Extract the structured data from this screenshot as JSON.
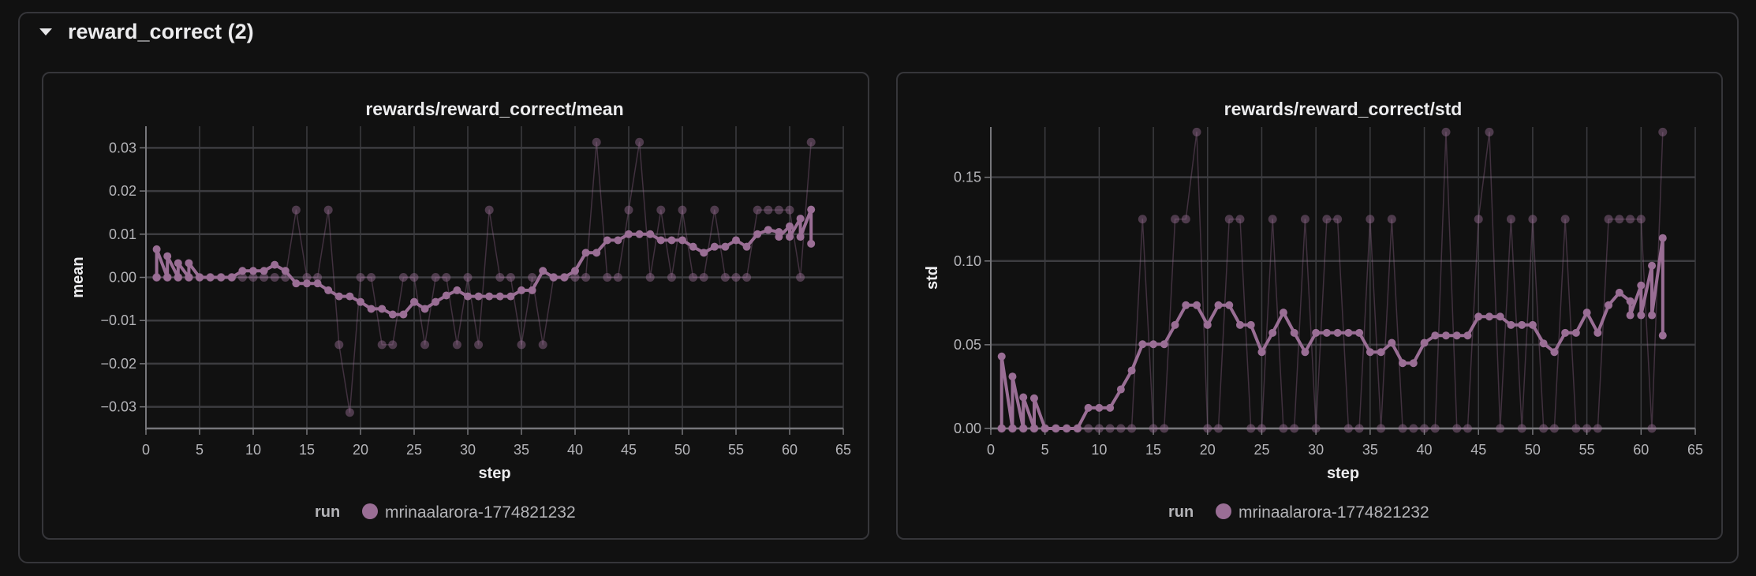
{
  "section": {
    "title": "reward_correct (2)",
    "caret_icon": "caret-down-icon"
  },
  "accent_color": "#9a6e95",
  "chart_data": [
    {
      "type": "line",
      "title": "rewards/reward_correct/mean",
      "xlabel": "step",
      "ylabel": "mean",
      "xlim": [
        0,
        65
      ],
      "ylim": [
        -0.035,
        0.035
      ],
      "xticks": [
        0,
        5,
        10,
        15,
        20,
        25,
        30,
        35,
        40,
        45,
        50,
        55,
        60,
        65
      ],
      "xtick_labels": [
        "0",
        "5",
        "10",
        "15",
        "20",
        "25",
        "30",
        "35",
        "40",
        "45",
        "50",
        "55",
        "60",
        "65"
      ],
      "yticks": [
        -0.03,
        -0.02,
        -0.01,
        0,
        0.01,
        0.02,
        0.03
      ],
      "ytick_labels": [
        "−0.03",
        "−0.02",
        "−0.01",
        "0.00",
        "0.01",
        "0.02",
        "0.03"
      ],
      "grid": true,
      "legend": {
        "title": "run",
        "placement": "bottom",
        "entries": [
          "mrinaalarora-1774821232"
        ]
      },
      "series": [
        {
          "name": "mrinaalarora-1774821232",
          "kind": "raw",
          "color": "#9a6e95",
          "x": [
            1,
            2,
            3,
            4,
            5,
            6,
            7,
            8,
            9,
            10,
            11,
            12,
            13,
            14,
            15,
            16,
            17,
            18,
            19,
            20,
            21,
            22,
            23,
            24,
            25,
            26,
            27,
            28,
            29,
            30,
            31,
            32,
            33,
            34,
            35,
            36,
            37,
            38,
            39,
            40,
            41,
            42,
            43,
            44,
            45,
            46,
            47,
            48,
            49,
            50,
            51,
            52,
            53,
            54,
            55,
            56,
            57,
            58,
            59,
            60,
            61,
            62
          ],
          "y": [
            0,
            0,
            0,
            0,
            0,
            0,
            0,
            0,
            0,
            0,
            0,
            0,
            0,
            0.0156,
            0,
            0,
            0.0156,
            -0.0156,
            -0.0313,
            0,
            0,
            -0.0156,
            -0.0156,
            0,
            0,
            -0.0156,
            0,
            0,
            -0.0156,
            0,
            -0.0156,
            0.0156,
            0,
            0,
            -0.0156,
            0,
            -0.0156,
            0,
            0,
            0,
            0,
            0.0313,
            0,
            0,
            0.0156,
            0.0313,
            0,
            0.0156,
            0,
            0.0156,
            0,
            0,
            0.0156,
            0,
            0,
            0,
            0.0156,
            0.0156,
            0.0156,
            0.0156,
            0,
            0.0313
          ]
        },
        {
          "name": "mrinaalarora-1774821232",
          "kind": "smoothed",
          "color": "#9a6e95",
          "x": [
            1,
            1,
            2,
            2,
            3,
            3,
            4,
            4,
            5,
            6,
            7,
            8,
            9,
            10,
            11,
            12,
            13,
            14,
            15,
            16,
            17,
            18,
            19,
            20,
            21,
            22,
            23,
            24,
            25,
            26,
            27,
            28,
            29,
            30,
            31,
            32,
            33,
            34,
            35,
            36,
            37,
            38,
            39,
            40,
            41,
            42,
            43,
            44,
            45,
            46,
            47,
            48,
            49,
            50,
            51,
            52,
            53,
            54,
            55,
            56,
            57,
            58,
            59,
            59,
            60,
            60,
            61,
            61,
            62,
            62
          ],
          "y": [
            0,
            0.0065,
            0,
            0.0049,
            0,
            0.0033,
            0,
            0.0033,
            0,
            0,
            0,
            0,
            0.0015,
            0.0015,
            0.0015,
            0.0029,
            0.0015,
            -0.0014,
            -0.0014,
            -0.0014,
            -0.003,
            -0.0044,
            -0.0044,
            -0.0057,
            -0.0073,
            -0.0073,
            -0.0086,
            -0.0086,
            -0.0057,
            -0.0073,
            -0.0057,
            -0.0042,
            -0.003,
            -0.0044,
            -0.0044,
            -0.0044,
            -0.0044,
            -0.0044,
            -0.003,
            -0.003,
            0.0015,
            0,
            0,
            0.0015,
            0.0057,
            0.0057,
            0.0086,
            0.0086,
            0.01,
            0.01,
            0.01,
            0.0086,
            0.0086,
            0.0086,
            0.0071,
            0.0057,
            0.0071,
            0.0071,
            0.0086,
            0.0071,
            0.01,
            0.011,
            0.0105,
            0.0094,
            0.0118,
            0.0094,
            0.0136,
            0.0094,
            0.0157,
            0.0078
          ]
        }
      ]
    },
    {
      "type": "line",
      "title": "rewards/reward_correct/std",
      "xlabel": "step",
      "ylabel": "std",
      "xlim": [
        0,
        65
      ],
      "ylim": [
        0,
        0.18
      ],
      "xticks": [
        0,
        5,
        10,
        15,
        20,
        25,
        30,
        35,
        40,
        45,
        50,
        55,
        60,
        65
      ],
      "xtick_labels": [
        "0",
        "5",
        "10",
        "15",
        "20",
        "25",
        "30",
        "35",
        "40",
        "45",
        "50",
        "55",
        "60",
        "65"
      ],
      "yticks": [
        0,
        0.05,
        0.1,
        0.15
      ],
      "ytick_labels": [
        "0.00",
        "0.05",
        "0.10",
        "0.15"
      ],
      "grid": true,
      "legend": {
        "title": "run",
        "placement": "bottom",
        "entries": [
          "mrinaalarora-1774821232"
        ]
      },
      "series": [
        {
          "name": "mrinaalarora-1774821232",
          "kind": "raw",
          "color": "#9a6e95",
          "x": [
            1,
            2,
            3,
            4,
            5,
            6,
            7,
            8,
            9,
            10,
            11,
            12,
            13,
            14,
            15,
            16,
            17,
            18,
            19,
            20,
            21,
            22,
            23,
            24,
            25,
            26,
            27,
            28,
            29,
            30,
            31,
            32,
            33,
            34,
            35,
            36,
            37,
            38,
            39,
            40,
            41,
            42,
            43,
            44,
            45,
            46,
            47,
            48,
            49,
            50,
            51,
            52,
            53,
            54,
            55,
            56,
            57,
            58,
            59,
            60,
            61,
            62
          ],
          "y": [
            0,
            0,
            0,
            0,
            0,
            0,
            0,
            0,
            0,
            0,
            0,
            0,
            0,
            0.125,
            0,
            0,
            0.125,
            0.125,
            0.177,
            0,
            0,
            0.125,
            0.125,
            0,
            0,
            0.125,
            0,
            0,
            0.125,
            0,
            0.125,
            0.125,
            0,
            0,
            0.125,
            0,
            0.125,
            0,
            0,
            0,
            0,
            0.177,
            0,
            0,
            0.125,
            0.177,
            0,
            0.125,
            0,
            0.125,
            0,
            0,
            0.125,
            0,
            0,
            0,
            0.125,
            0.125,
            0.125,
            0.125,
            0,
            0.177
          ]
        },
        {
          "name": "mrinaalarora-1774821232",
          "kind": "smoothed",
          "color": "#9a6e95",
          "x": [
            1,
            1,
            2,
            2,
            3,
            3,
            4,
            4,
            5,
            6,
            7,
            8,
            9,
            10,
            11,
            12,
            13,
            14,
            15,
            16,
            17,
            18,
            19,
            20,
            21,
            22,
            23,
            24,
            25,
            26,
            27,
            28,
            29,
            30,
            31,
            32,
            33,
            34,
            35,
            36,
            37,
            38,
            39,
            40,
            41,
            42,
            43,
            44,
            45,
            46,
            47,
            48,
            49,
            50,
            51,
            52,
            53,
            54,
            55,
            56,
            57,
            58,
            59,
            59,
            60,
            60,
            61,
            61,
            62,
            62
          ],
          "y": [
            0,
            0.043,
            0,
            0.031,
            0,
            0.0186,
            0,
            0.018,
            0,
            0,
            0,
            0,
            0.0123,
            0.0123,
            0.0123,
            0.0233,
            0.0346,
            0.0503,
            0.0503,
            0.0503,
            0.0618,
            0.0736,
            0.0736,
            0.0618,
            0.0736,
            0.0736,
            0.0618,
            0.0618,
            0.0456,
            0.0571,
            0.0692,
            0.0571,
            0.0456,
            0.0571,
            0.0571,
            0.0571,
            0.0571,
            0.0571,
            0.0456,
            0.0456,
            0.0511,
            0.039,
            0.039,
            0.0511,
            0.0555,
            0.0555,
            0.0555,
            0.0555,
            0.0668,
            0.0668,
            0.0668,
            0.0618,
            0.0618,
            0.0618,
            0.0508,
            0.0456,
            0.0571,
            0.0571,
            0.0692,
            0.0571,
            0.0736,
            0.0811,
            0.076,
            0.0676,
            0.0854,
            0.0676,
            0.0972,
            0.0676,
            0.1137,
            0.0555
          ]
        }
      ]
    }
  ]
}
